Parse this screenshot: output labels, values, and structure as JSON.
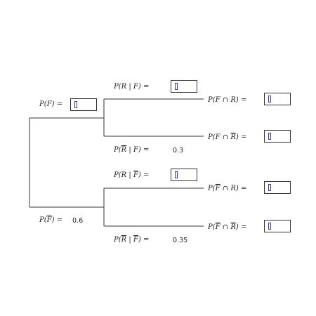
{
  "labels": {
    "p_f": "P(F) =",
    "p_fbar": "P(F̄) =",
    "p_r_given_f": "P(R | F) =",
    "p_rbar_given_f": "P(R̄ | F) =",
    "p_r_given_fbar": "P(R | F̄) =",
    "p_rbar_given_fbar": "P(R̄ | F̄) =",
    "p_f_and_r": "P(F ∩ R) =",
    "p_f_and_rbar": "P(F ∩ R̄) =",
    "p_fbar_and_r": "P(F̄ ∩ R) =",
    "p_fbar_and_rbar": "P(F̄ ∩ R̄) ="
  },
  "values": {
    "p_fbar": "0.6",
    "p_rbar_given_f": "0.3",
    "p_rbar_given_fbar": "0.35"
  },
  "inputs": {
    "p_f": "",
    "p_r_given_f": "",
    "p_r_given_fbar": "",
    "p_f_and_r": "",
    "p_f_and_rbar": "",
    "p_fbar_and_r": "",
    "p_fbar_and_rbar": ""
  }
}
